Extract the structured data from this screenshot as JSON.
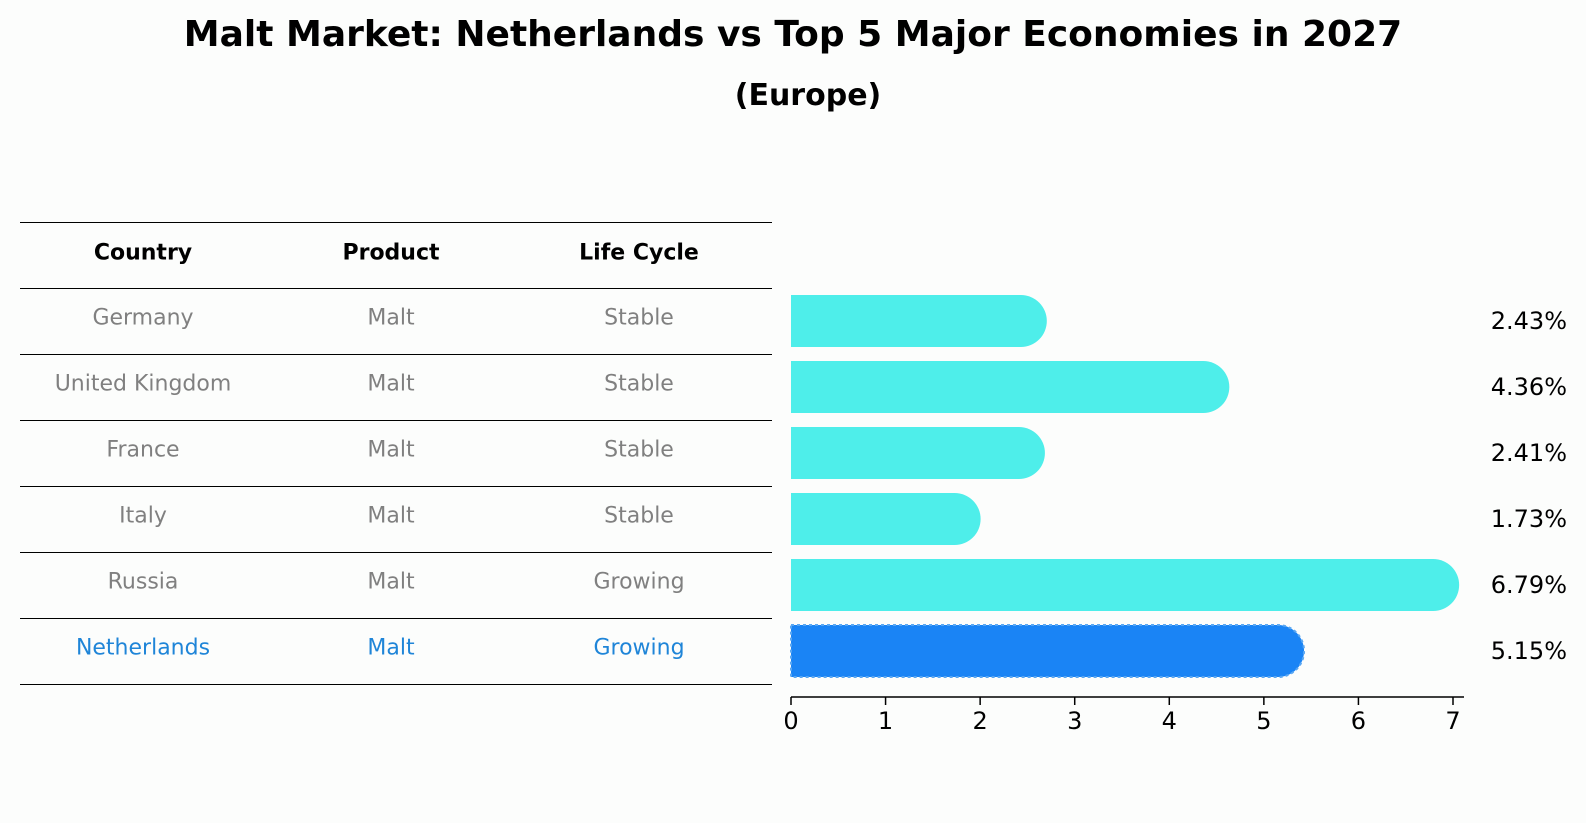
{
  "title": "Malt Market: Netherlands vs Top 5 Major Economies in 2027",
  "subtitle": "(Europe)",
  "table": {
    "headers": [
      "Country",
      "Product",
      "Life Cycle"
    ],
    "rows": [
      [
        "Germany",
        "Malt",
        "Stable"
      ],
      [
        "United Kingdom",
        "Malt",
        "Stable"
      ],
      [
        "France",
        "Malt",
        "Stable"
      ],
      [
        "Italy",
        "Malt",
        "Stable"
      ],
      [
        "Russia",
        "Malt",
        "Growing"
      ],
      [
        "Netherlands",
        "Malt",
        "Growing"
      ]
    ],
    "highlight_row": 5
  },
  "chart_data": {
    "type": "bar",
    "orientation": "horizontal",
    "categories": [
      "Germany",
      "United Kingdom",
      "France",
      "Italy",
      "Russia",
      "Netherlands"
    ],
    "values": [
      2.43,
      4.36,
      2.41,
      1.73,
      6.79,
      5.15
    ],
    "value_labels": [
      "2.43%",
      "4.36%",
      "2.41%",
      "1.73%",
      "6.79%",
      "5.15%"
    ],
    "xlim": [
      0,
      7
    ],
    "xticks": [
      "0",
      "1",
      "2",
      "3",
      "4",
      "5",
      "6",
      "7"
    ],
    "highlight_index": 5,
    "colors": {
      "default": "#4eeeea",
      "highlight": "#1a84f5",
      "highlight_text": "#1f85d8",
      "muted_text": "#808080"
    }
  }
}
